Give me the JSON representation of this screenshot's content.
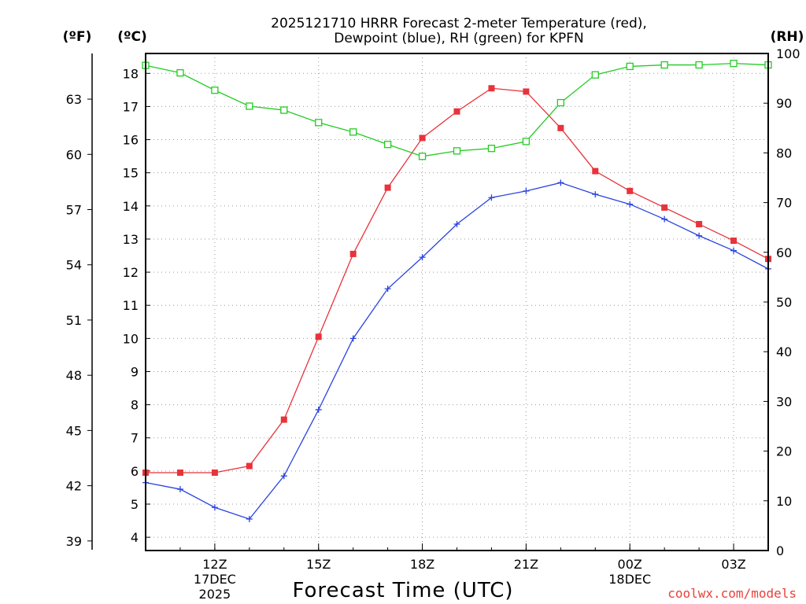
{
  "chart_data": {
    "type": "line",
    "title_line1": "2025121710 HRRR Forecast 2-meter Temperature (red),",
    "title_line2": "Dewpoint (blue), RH (green) for KPFN",
    "xlabel": "Forecast Time (UTC)",
    "credit": "coolwx.com/models",
    "units": {
      "fahrenheit": "(ºF)",
      "celsius": "(ºC)",
      "rh": "(RH)"
    },
    "x": [
      "10Z",
      "11Z",
      "12Z",
      "13Z",
      "14Z",
      "15Z",
      "16Z",
      "17Z",
      "18Z",
      "19Z",
      "20Z",
      "21Z",
      "22Z",
      "23Z",
      "00Z",
      "01Z",
      "02Z",
      "03Z",
      "04Z"
    ],
    "x_ticks": [
      {
        "label": "12Z",
        "index": 2,
        "sub1": "17DEC",
        "sub2": "2025"
      },
      {
        "label": "15Z",
        "index": 5
      },
      {
        "label": "18Z",
        "index": 8
      },
      {
        "label": "21Z",
        "index": 11
      },
      {
        "label": "00Z",
        "index": 14,
        "sub1": "18DEC"
      },
      {
        "label": "03Z",
        "index": 17
      }
    ],
    "celsius_range": [
      3.6,
      18.6
    ],
    "celsius_ticks": [
      "4",
      "5",
      "6",
      "7",
      "8",
      "9",
      "10",
      "11",
      "12",
      "13",
      "14",
      "15",
      "16",
      "17",
      "18"
    ],
    "fahrenheit_ticks": [
      "39",
      "42",
      "45",
      "48",
      "51",
      "54",
      "57",
      "60",
      "63"
    ],
    "rh_range": [
      0,
      100
    ],
    "rh_ticks": [
      "0",
      "10",
      "20",
      "30",
      "40",
      "50",
      "60",
      "70",
      "80",
      "90",
      "100"
    ],
    "series": [
      {
        "name": "Temperature",
        "color": "#e8333a",
        "marker": "filled-square",
        "axis": "celsius",
        "values": [
          5.95,
          5.95,
          5.95,
          6.15,
          7.55,
          10.05,
          12.55,
          14.55,
          16.05,
          16.85,
          17.55,
          17.45,
          16.35,
          15.05,
          14.45,
          13.95,
          13.45,
          12.95,
          12.4
        ]
      },
      {
        "name": "Dewpoint",
        "color": "#2a44e0",
        "marker": "plus",
        "axis": "celsius",
        "values": [
          5.65,
          5.45,
          4.9,
          4.55,
          5.85,
          7.85,
          10.0,
          11.5,
          12.45,
          13.45,
          14.25,
          14.45,
          14.7,
          14.35,
          14.05,
          13.6,
          13.1,
          12.65,
          12.1
        ]
      },
      {
        "name": "RH",
        "color": "#22cc22",
        "marker": "open-square",
        "axis": "rh",
        "values": [
          97.6,
          96.1,
          92.6,
          89.4,
          88.6,
          86.1,
          84.2,
          81.7,
          79.3,
          80.4,
          80.9,
          82.3,
          90.1,
          95.7,
          97.4,
          97.7,
          97.7,
          98.0,
          97.7
        ]
      }
    ]
  }
}
